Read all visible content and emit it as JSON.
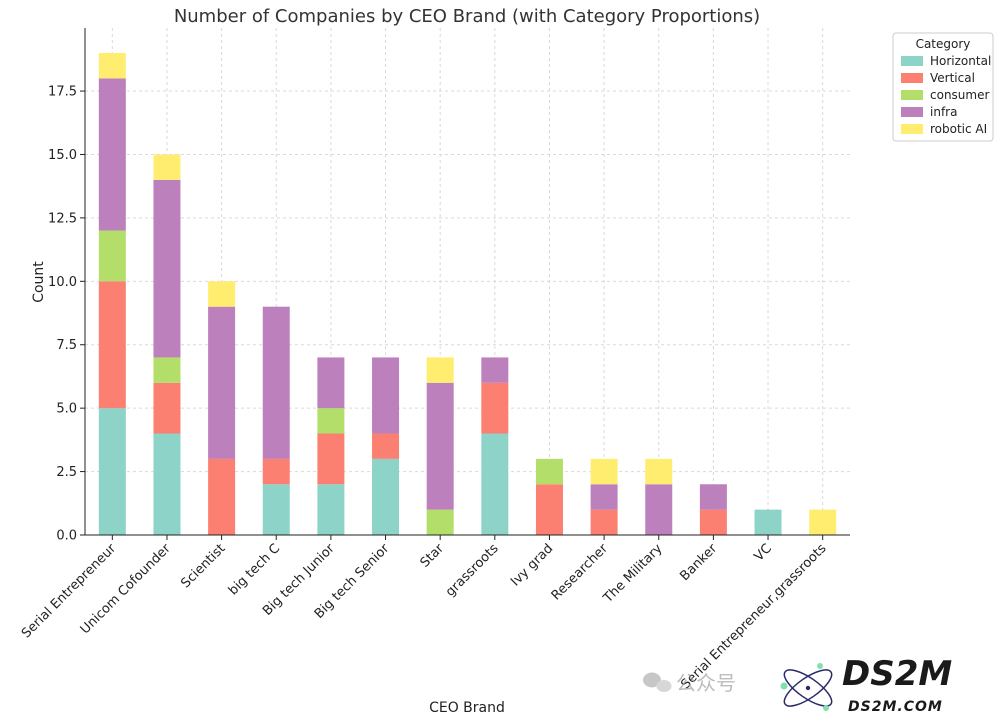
{
  "chart_data": {
    "type": "bar",
    "stacked": true,
    "title": "Number of Companies by CEO Brand (with Category Proportions)",
    "xlabel": "CEO Brand",
    "ylabel": "Count",
    "ylim": [
      0,
      20
    ],
    "yticks": [
      "0.0",
      "2.5",
      "5.0",
      "7.5",
      "10.0",
      "12.5",
      "15.0",
      "17.5"
    ],
    "grid": true,
    "legend": {
      "title": "Category",
      "placement": "top-right"
    },
    "categories": [
      "Serial Entrepreneur",
      "Unicom Cofounder",
      "Scientist",
      "big tech C",
      "Big tech Junior",
      "Big tech Senior",
      "Star",
      "grassroots",
      "Ivy grad",
      "Researcher",
      "The Military",
      "Banker",
      "VC",
      "Serial Entrepreneur,grassroots"
    ],
    "series": [
      {
        "name": "Horizontal",
        "color": "#8dd3c7",
        "values": [
          5,
          4,
          0,
          2,
          2,
          3,
          0,
          4,
          0,
          0,
          0,
          0,
          1,
          0
        ]
      },
      {
        "name": "Vertical",
        "color": "#fb8072",
        "values": [
          5,
          2,
          3,
          1,
          2,
          1,
          0,
          2,
          2,
          1,
          0,
          1,
          0,
          0
        ]
      },
      {
        "name": "consumer",
        "color": "#b3de69",
        "values": [
          2,
          1,
          0,
          0,
          1,
          0,
          1,
          0,
          1,
          0,
          0,
          0,
          0,
          0
        ]
      },
      {
        "name": "infra",
        "color": "#bc80bd",
        "values": [
          6,
          7,
          6,
          6,
          2,
          3,
          5,
          1,
          0,
          1,
          2,
          1,
          0,
          0
        ]
      },
      {
        "name": "robotic AI",
        "color": "#ffed6f",
        "values": [
          1,
          1,
          1,
          0,
          0,
          0,
          1,
          0,
          0,
          1,
          1,
          0,
          0,
          1
        ]
      }
    ]
  },
  "watermark": {
    "logo_text": "DS2M",
    "url_text": "DS2M.COM",
    "wechat_text": "公众号"
  }
}
